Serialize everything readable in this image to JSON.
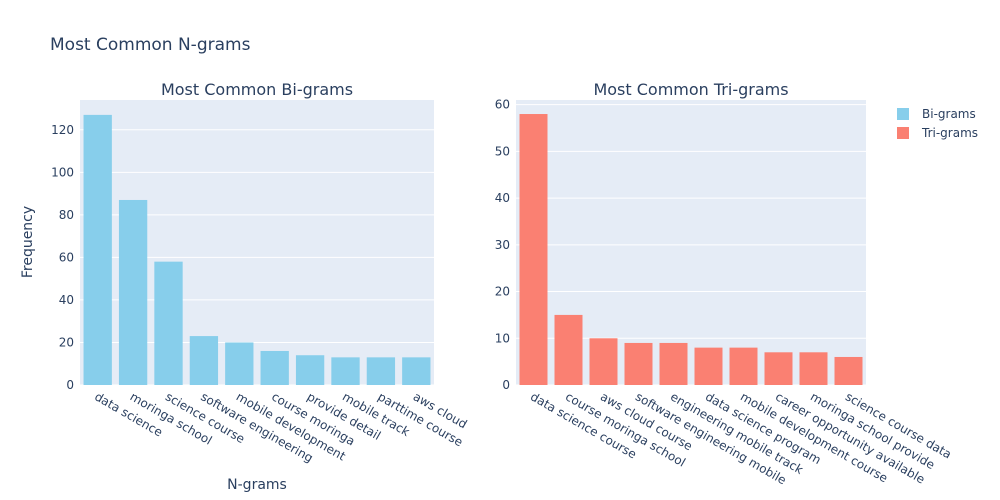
{
  "figure": {
    "title": "Most Common N-grams",
    "xlabel": "N-grams",
    "ylabel": "Frequency"
  },
  "legend": {
    "position": "top-right",
    "items": [
      {
        "label": "Bi-grams",
        "color": "#87CEEB"
      },
      {
        "label": "Tri-grams",
        "color": "#FA8072"
      }
    ]
  },
  "chart_data": [
    {
      "type": "bar",
      "title": "Most Common Bi-grams",
      "series_name": "Bi-grams",
      "color": "#87CEEB",
      "categories": [
        "data science",
        "moringa school",
        "science course",
        "software engineering",
        "mobile development",
        "course moringa",
        "provide detail",
        "mobile track",
        "parttime course",
        "aws cloud"
      ],
      "values": [
        127,
        87,
        58,
        23,
        20,
        16,
        14,
        13,
        13,
        13
      ],
      "ylim": [
        0,
        134
      ],
      "yticks": [
        0,
        20,
        40,
        60,
        80,
        100,
        120
      ],
      "grid": true
    },
    {
      "type": "bar",
      "title": "Most Common Tri-grams",
      "series_name": "Tri-grams",
      "color": "#FA8072",
      "categories": [
        "data science course",
        "course moringa school",
        "aws cloud course",
        "software engineering mobile",
        "engineering mobile track",
        "data science program",
        "mobile development course",
        "career opportunity available",
        "moringa school provide",
        "science course data"
      ],
      "values": [
        58,
        15,
        10,
        9,
        9,
        8,
        8,
        7,
        7,
        6
      ],
      "ylim": [
        0,
        61
      ],
      "yticks": [
        0,
        10,
        20,
        30,
        40,
        50,
        60
      ],
      "grid": true
    }
  ]
}
